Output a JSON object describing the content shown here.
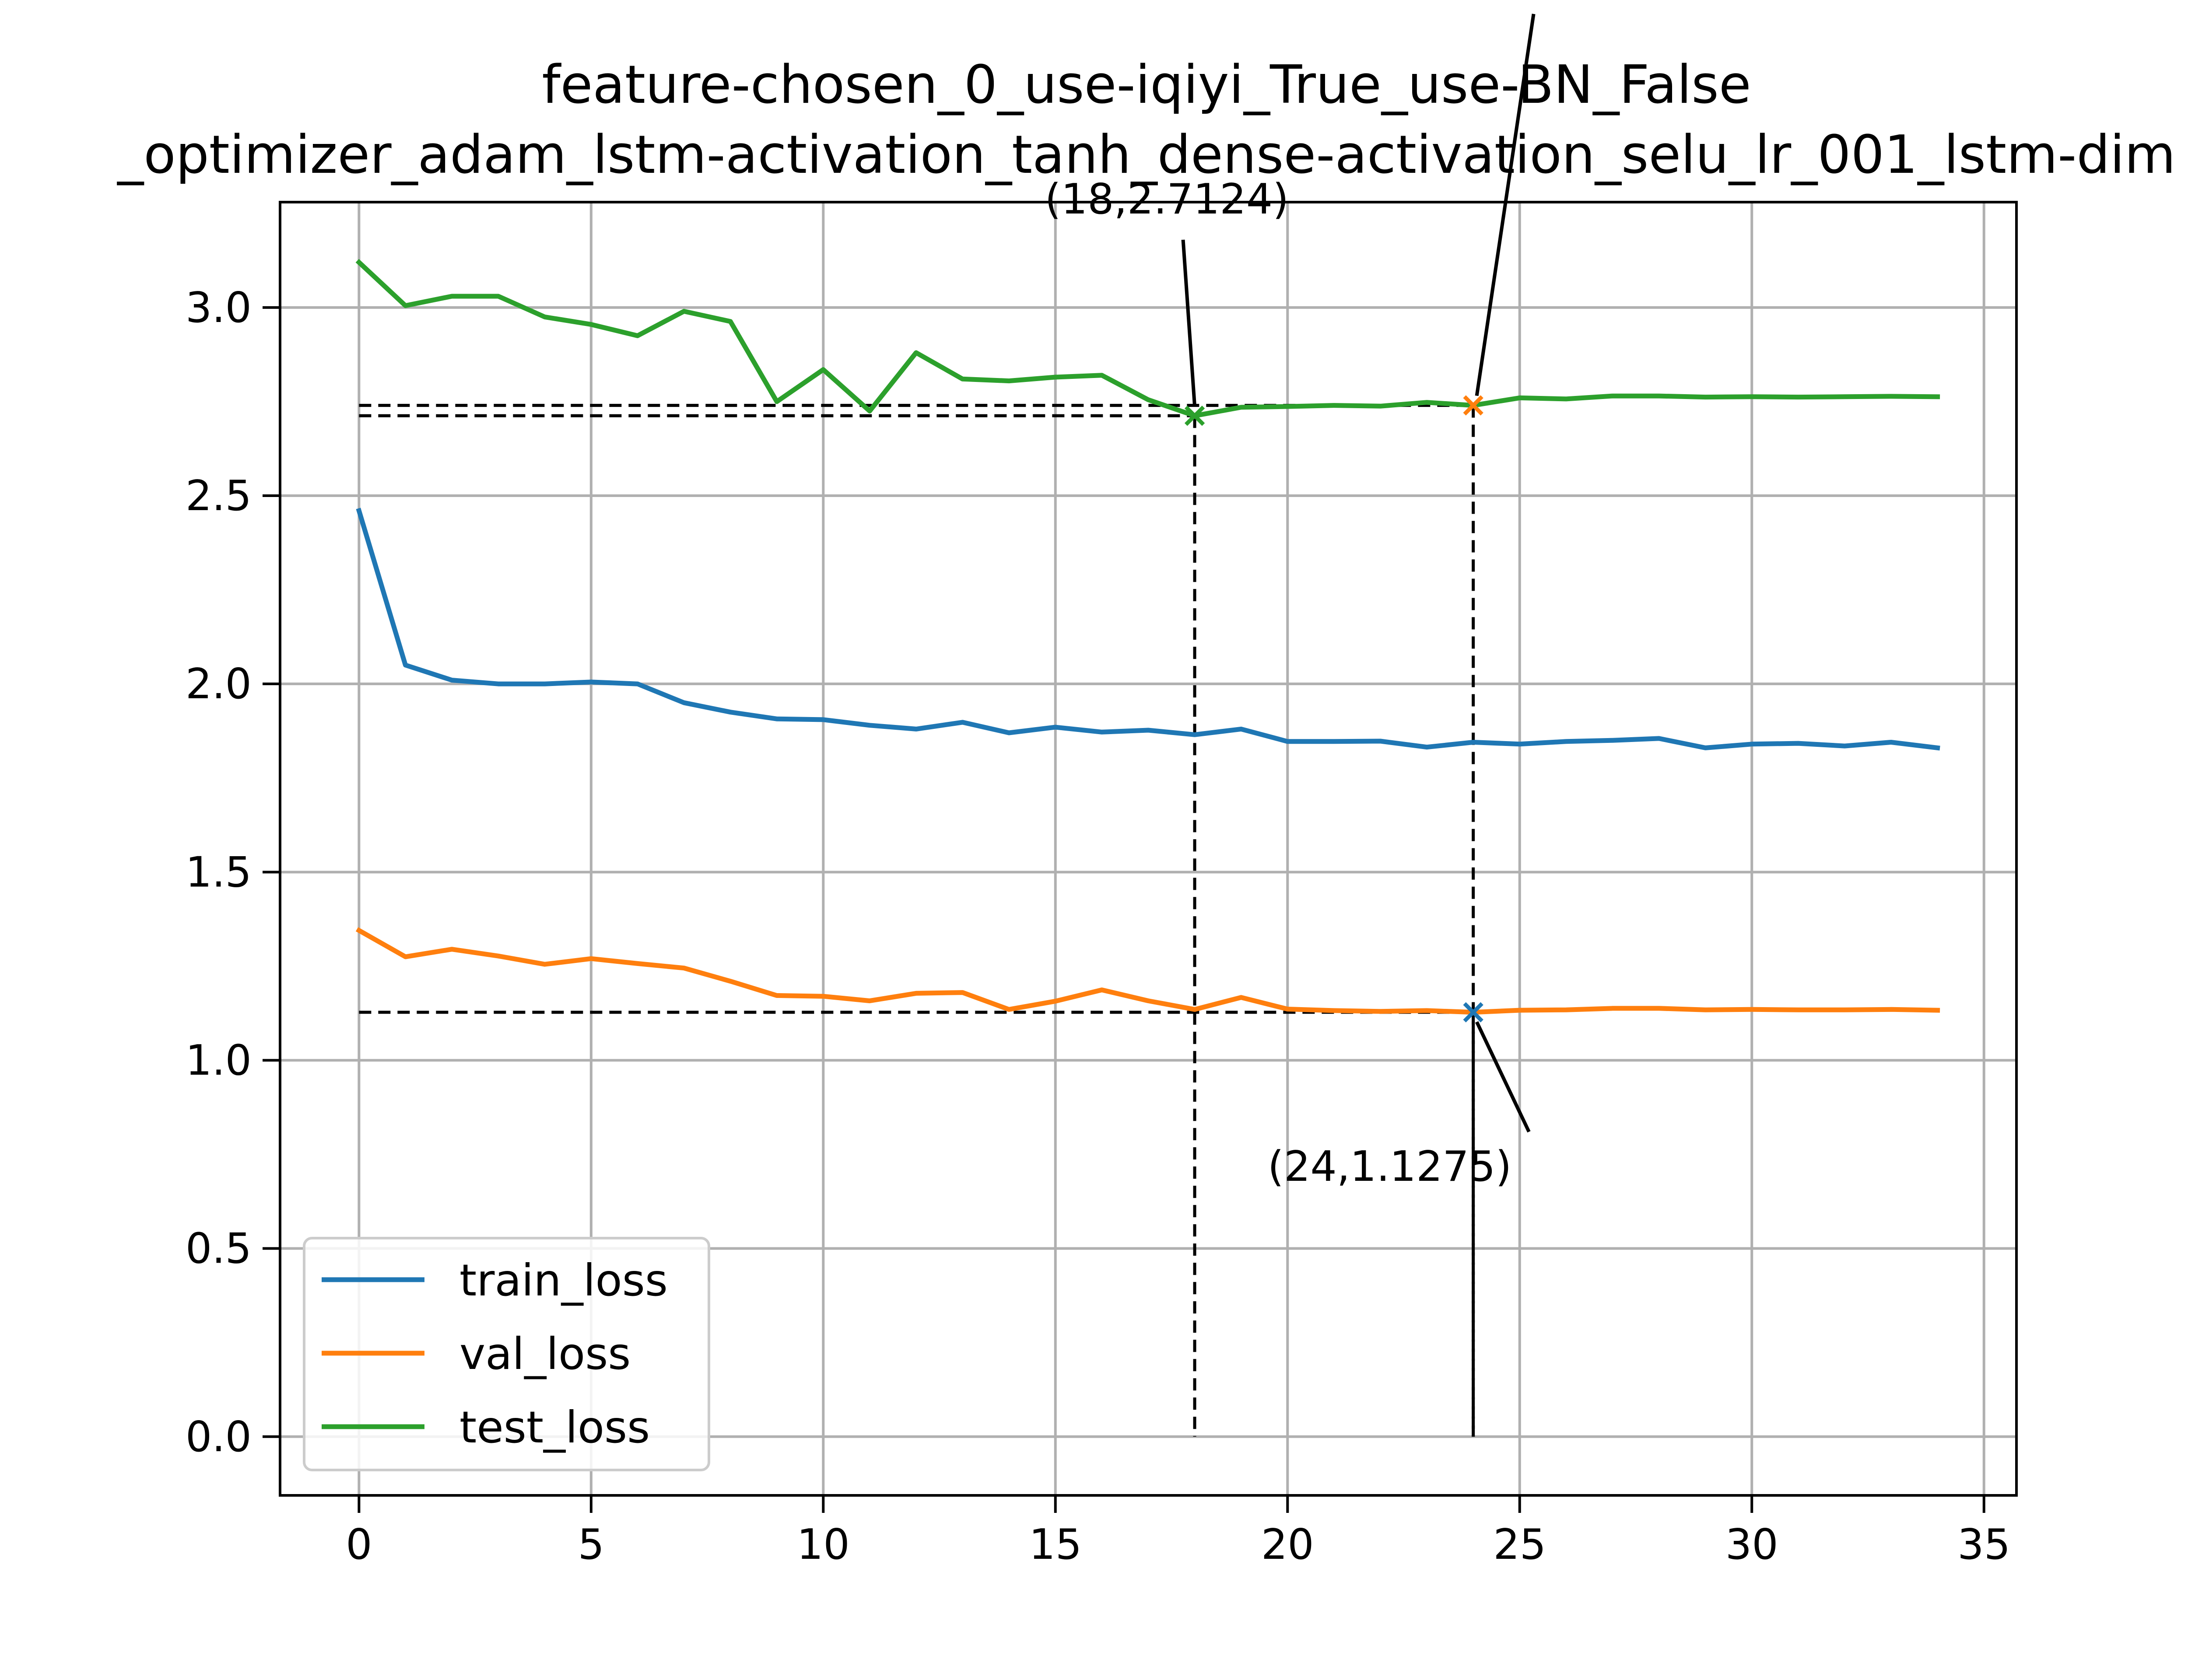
{
  "chart_data": {
    "type": "line",
    "title_lines": [
      "feature-chosen_0_use-iqiyi_True_use-BN_False",
      "_optimizer_adam_lstm-activation_tanh_dense-activation_selu_lr_001_lstm-dim"
    ],
    "xlabel": "",
    "ylabel": "",
    "xlim": [
      -1.7,
      35.7
    ],
    "ylim": [
      -0.156,
      3.28
    ],
    "xticks": [
      0,
      5,
      10,
      15,
      20,
      25,
      30,
      35
    ],
    "xtick_labels": [
      "0",
      "5",
      "10",
      "15",
      "20",
      "25",
      "30",
      "35"
    ],
    "yticks": [
      0.0,
      0.5,
      1.0,
      1.5,
      2.0,
      2.5,
      3.0
    ],
    "ytick_labels": [
      "0.0",
      "0.5",
      "1.0",
      "1.5",
      "2.0",
      "2.5",
      "3.0"
    ],
    "grid": true,
    "legend_position": "lower-left",
    "x": [
      0,
      1,
      2,
      3,
      4,
      5,
      6,
      7,
      8,
      9,
      10,
      11,
      12,
      13,
      14,
      15,
      16,
      17,
      18,
      19,
      20,
      21,
      22,
      23,
      24,
      25,
      26,
      27,
      28,
      29,
      30,
      31,
      32,
      33,
      34
    ],
    "series": [
      {
        "name": "train_loss",
        "color": "#1f77b4",
        "values": [
          2.46,
          2.05,
          2.01,
          2.0,
          2.0,
          2.005,
          2.0,
          1.95,
          1.925,
          1.907,
          1.905,
          1.89,
          1.88,
          1.898,
          1.87,
          1.885,
          1.872,
          1.877,
          1.865,
          1.88,
          1.847,
          1.847,
          1.848,
          1.832,
          1.845,
          1.84,
          1.847,
          1.85,
          1.855,
          1.83,
          1.84,
          1.842,
          1.835,
          1.845,
          1.83
        ]
      },
      {
        "name": "val_loss",
        "color": "#ff7f0e",
        "values": [
          1.345,
          1.275,
          1.295,
          1.277,
          1.255,
          1.27,
          1.257,
          1.245,
          1.21,
          1.172,
          1.17,
          1.158,
          1.178,
          1.18,
          1.135,
          1.157,
          1.187,
          1.158,
          1.135,
          1.167,
          1.136,
          1.132,
          1.13,
          1.132,
          1.1275,
          1.133,
          1.134,
          1.138,
          1.138,
          1.134,
          1.135,
          1.134,
          1.134,
          1.135,
          1.133
        ]
      },
      {
        "name": "test_loss",
        "color": "#2ca02c",
        "values": [
          3.12,
          3.005,
          3.03,
          3.03,
          2.975,
          2.955,
          2.925,
          2.99,
          2.963,
          2.75,
          2.835,
          2.725,
          2.88,
          2.81,
          2.805,
          2.815,
          2.82,
          2.755,
          2.7124,
          2.735,
          2.737,
          2.74,
          2.738,
          2.748,
          2.74,
          2.76,
          2.757,
          2.765,
          2.765,
          2.762,
          2.763,
          2.762,
          2.763,
          2.764,
          2.763
        ]
      }
    ],
    "annotations": [
      {
        "label": "(18,2.7124)",
        "x": 18,
        "y": 2.7124,
        "series": "test_loss",
        "marker_color": "#2ca02c",
        "text_x": 17.4,
        "text_y": 3.25,
        "arrow_from_x": 17.75,
        "arrow_from_y": 3.18
      },
      {
        "label": "(24,1.1275)",
        "x": 24,
        "y": 1.1275,
        "series": "val_loss",
        "marker_color": "#1f77b4",
        "text_x": 22.2,
        "text_y": 0.68,
        "arrow_from_x": 25.2,
        "arrow_from_y": 0.81
      },
      {
        "label": "",
        "x": 24,
        "y": 2.74,
        "series": "test_loss",
        "marker_color": "#ff7f0e",
        "arrow_from_x": 25.3,
        "arrow_from_y": 3.78
      }
    ]
  }
}
